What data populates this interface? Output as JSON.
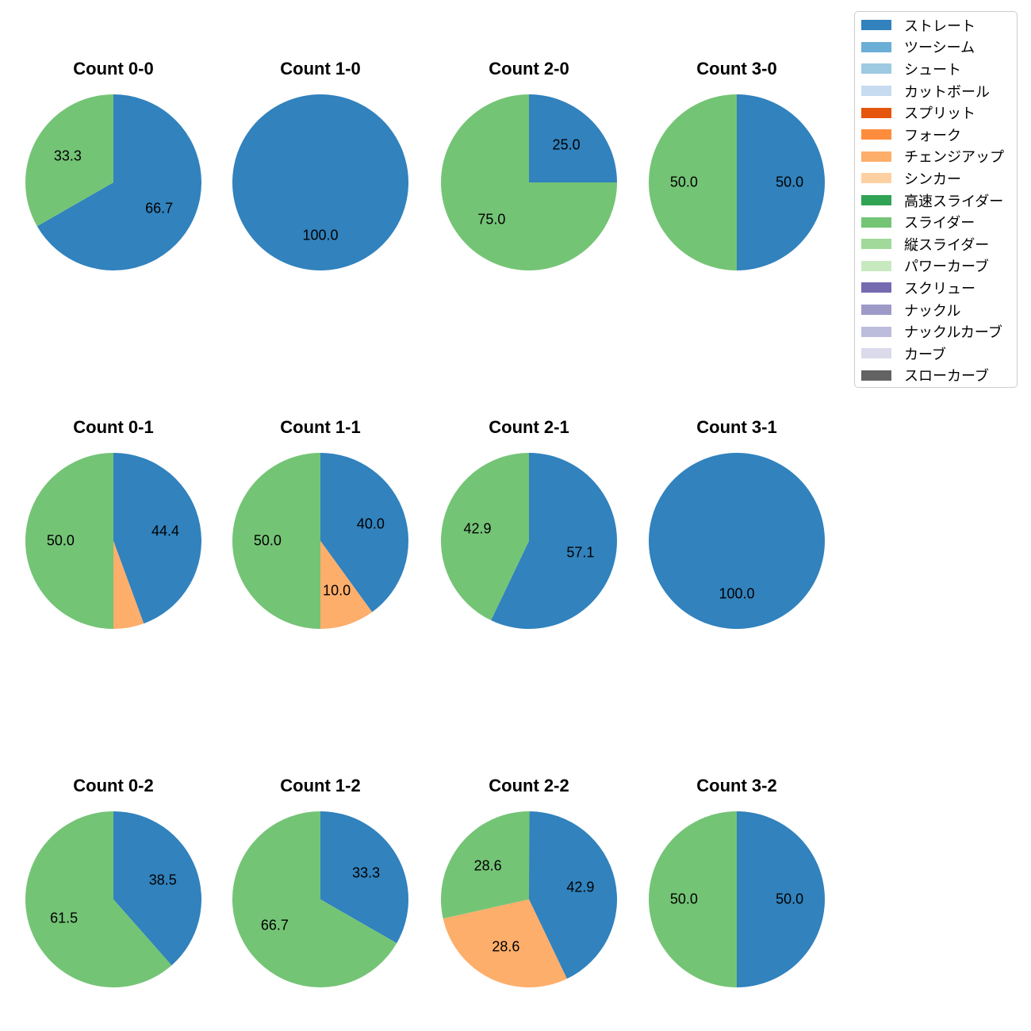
{
  "figure": {
    "background_color": "#ffffff"
  },
  "legend": {
    "position": "upper right",
    "items": [
      {
        "label": "ストレート",
        "color": "#3182bd"
      },
      {
        "label": "ツーシーム",
        "color": "#6baed6"
      },
      {
        "label": "シュート",
        "color": "#9ecae1"
      },
      {
        "label": "カットボール",
        "color": "#c6dbef"
      },
      {
        "label": "スプリット",
        "color": "#e6550d"
      },
      {
        "label": "フォーク",
        "color": "#fd8d3c"
      },
      {
        "label": "チェンジアップ",
        "color": "#fdae6b"
      },
      {
        "label": "シンカー",
        "color": "#fdd0a2"
      },
      {
        "label": "高速スライダー",
        "color": "#31a354"
      },
      {
        "label": "スライダー",
        "color": "#74c476"
      },
      {
        "label": "縦スライダー",
        "color": "#a1d99b"
      },
      {
        "label": "パワーカーブ",
        "color": "#c7e9c0"
      },
      {
        "label": "スクリュー",
        "color": "#756bb1"
      },
      {
        "label": "ナックル",
        "color": "#9e9ac8"
      },
      {
        "label": "ナックルカーブ",
        "color": "#bcbddc"
      },
      {
        "label": "カーブ",
        "color": "#dadaeb"
      },
      {
        "label": "スローカーブ",
        "color": "#636363"
      }
    ]
  },
  "chart_data": {
    "type": "pie",
    "layout": {
      "grid": "4 columns x 3 rows",
      "start_angle_deg": 90,
      "direction": "clockwise",
      "pct_label_distance": 0.6,
      "legend_position": "upper right",
      "label_format": "one decimal percent, no % sign"
    },
    "charts": [
      {
        "title": "Count 0-0",
        "slices": [
          {
            "pitch": "ストレート",
            "value": 66.7,
            "pct_label": "66.7"
          },
          {
            "pitch": "スライダー",
            "value": 33.3,
            "pct_label": "33.3"
          }
        ]
      },
      {
        "title": "Count 1-0",
        "slices": [
          {
            "pitch": "ストレート",
            "value": 100.0,
            "pct_label": "100.0"
          }
        ]
      },
      {
        "title": "Count 2-0",
        "slices": [
          {
            "pitch": "ストレート",
            "value": 25.0,
            "pct_label": "25.0"
          },
          {
            "pitch": "スライダー",
            "value": 75.0,
            "pct_label": "75.0"
          }
        ]
      },
      {
        "title": "Count 3-0",
        "slices": [
          {
            "pitch": "ストレート",
            "value": 50.0,
            "pct_label": "50.0"
          },
          {
            "pitch": "スライダー",
            "value": 50.0,
            "pct_label": "50.0"
          }
        ]
      },
      {
        "title": "Count 0-1",
        "slices": [
          {
            "pitch": "ストレート",
            "value": 44.4,
            "pct_label": "44.4"
          },
          {
            "pitch": "チェンジアップ",
            "value": 5.6,
            "pct_label": ""
          },
          {
            "pitch": "スライダー",
            "value": 50.0,
            "pct_label": "50.0"
          }
        ]
      },
      {
        "title": "Count 1-1",
        "slices": [
          {
            "pitch": "ストレート",
            "value": 40.0,
            "pct_label": "40.0"
          },
          {
            "pitch": "チェンジアップ",
            "value": 10.0,
            "pct_label": "10.0"
          },
          {
            "pitch": "スライダー",
            "value": 50.0,
            "pct_label": "50.0"
          }
        ]
      },
      {
        "title": "Count 2-1",
        "slices": [
          {
            "pitch": "ストレート",
            "value": 57.1,
            "pct_label": "57.1"
          },
          {
            "pitch": "スライダー",
            "value": 42.9,
            "pct_label": "42.9"
          }
        ]
      },
      {
        "title": "Count 3-1",
        "slices": [
          {
            "pitch": "ストレート",
            "value": 100.0,
            "pct_label": "100.0"
          }
        ]
      },
      {
        "title": "Count 0-2",
        "slices": [
          {
            "pitch": "ストレート",
            "value": 38.5,
            "pct_label": "38.5"
          },
          {
            "pitch": "スライダー",
            "value": 61.5,
            "pct_label": "61.5"
          }
        ]
      },
      {
        "title": "Count 1-2",
        "slices": [
          {
            "pitch": "ストレート",
            "value": 33.3,
            "pct_label": "33.3"
          },
          {
            "pitch": "スライダー",
            "value": 66.7,
            "pct_label": "66.7"
          }
        ]
      },
      {
        "title": "Count 2-2",
        "slices": [
          {
            "pitch": "ストレート",
            "value": 42.9,
            "pct_label": "42.9"
          },
          {
            "pitch": "チェンジアップ",
            "value": 28.6,
            "pct_label": "28.6"
          },
          {
            "pitch": "スライダー",
            "value": 28.6,
            "pct_label": "28.6"
          }
        ]
      },
      {
        "title": "Count 3-2",
        "slices": [
          {
            "pitch": "ストレート",
            "value": 50.0,
            "pct_label": "50.0"
          },
          {
            "pitch": "スライダー",
            "value": 50.0,
            "pct_label": "50.0"
          }
        ]
      }
    ]
  }
}
